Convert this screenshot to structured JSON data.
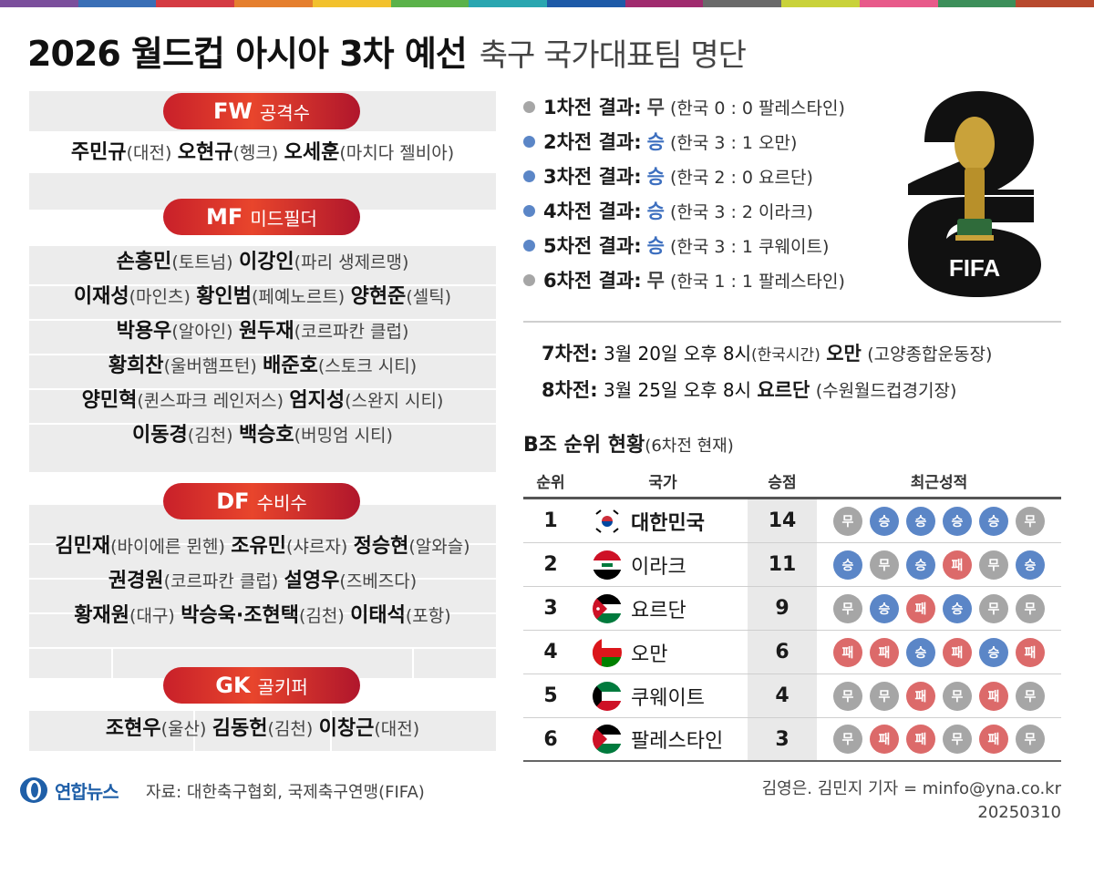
{
  "colors": {
    "win": "#5b86c7",
    "draw": "#a6a6a6",
    "loss": "#dc6a6a",
    "pill_red": "#d5302b",
    "stripe": "#ececec",
    "brand_blue": "#1f5fa8"
  },
  "top_bar_colors": [
    "#7b4f9c",
    "#3a6fb6",
    "#d53b43",
    "#e57f2e",
    "#f2c12d",
    "#5bb24a",
    "#2aa6b0",
    "#1d5aa8",
    "#a02b6e",
    "#6a6a6a",
    "#c9d23a",
    "#e85a8a",
    "#3c8f5a",
    "#b84a2e"
  ],
  "header": {
    "title": "2026 월드컵 아시아 3차 예선",
    "subtitle": "축구 국가대표팀 명단"
  },
  "squad": {
    "fw": {
      "code": "FW",
      "name": "공격수",
      "rows": [
        [
          [
            "주민규",
            "(대전)"
          ],
          [
            "오현규",
            "(헹크)"
          ],
          [
            "오세훈",
            "(마치다 젤비아)"
          ]
        ]
      ]
    },
    "mf": {
      "code": "MF",
      "name": "미드필더",
      "rows": [
        [
          [
            "손흥민",
            "(토트넘)"
          ],
          [
            "이강인",
            "(파리 생제르맹)"
          ]
        ],
        [
          [
            "이재성",
            "(마인츠)"
          ],
          [
            "황인범",
            "(페예노르트)"
          ],
          [
            "양현준",
            "(셀틱)"
          ]
        ],
        [
          [
            "박용우",
            "(알아인)"
          ],
          [
            "원두재",
            "(코르파칸 클럽)"
          ]
        ],
        [
          [
            "황희찬",
            "(울버햄프턴)"
          ],
          [
            "배준호",
            "(스토크 시티)"
          ]
        ],
        [
          [
            "양민혁",
            "(퀸스파크 레인저스)"
          ],
          [
            "엄지성",
            "(스완지 시티)"
          ]
        ],
        [
          [
            "이동경",
            "(김천)"
          ],
          [
            "백승호",
            "(버밍엄 시티)"
          ]
        ]
      ]
    },
    "df": {
      "code": "DF",
      "name": "수비수",
      "rows": [
        [
          [
            "김민재",
            "(바이에른 뮌헨)"
          ],
          [
            "조유민",
            "(샤르자)"
          ],
          [
            "정승현",
            "(알와슬)"
          ]
        ],
        [
          [
            "권경원",
            "(코르파칸 클럽)"
          ],
          [
            "설영우",
            "(즈베즈다)"
          ]
        ],
        [
          [
            "황재원",
            "(대구)"
          ],
          [
            "박승욱·조현택",
            "(김천)"
          ],
          [
            "이태석",
            "(포항)"
          ]
        ]
      ]
    },
    "gk": {
      "code": "GK",
      "name": "골키퍼",
      "rows": [
        [
          [
            "조현우",
            "(울산)"
          ],
          [
            "김동헌",
            "(김천)"
          ],
          [
            "이창근",
            "(대전)"
          ]
        ]
      ]
    }
  },
  "results": [
    {
      "label": "1차전 결과:",
      "result": "무",
      "type": "draw",
      "detail": "(한국 0 : 0 팔레스타인)"
    },
    {
      "label": "2차전 결과:",
      "result": "승",
      "type": "win",
      "detail": "(한국 3 : 1 오만)"
    },
    {
      "label": "3차전 결과:",
      "result": "승",
      "type": "win",
      "detail": "(한국 2 : 0 요르단)"
    },
    {
      "label": "4차전 결과:",
      "result": "승",
      "type": "win",
      "detail": "(한국 3 : 2 이라크)"
    },
    {
      "label": "5차전 결과:",
      "result": "승",
      "type": "win",
      "detail": "(한국 3 : 1 쿠웨이트)"
    },
    {
      "label": "6차전 결과:",
      "result": "무",
      "type": "draw",
      "detail": "(한국 1 : 1 팔레스타인)"
    }
  ],
  "logo": {
    "text": "FIFA",
    "numerals": "26"
  },
  "fixtures": [
    {
      "label": "7차전:",
      "date": "3월 20일 오후 8시",
      "tz": "(한국시간)",
      "opponent": "오만",
      "venue": "(고양종합운동장)"
    },
    {
      "label": "8차전:",
      "date": "3월 25일 오후 8시",
      "tz": "",
      "opponent": "요르단",
      "venue": "(수원월드컵경기장)"
    }
  ],
  "group": {
    "title": "B조 순위 현황",
    "note": "(6차전 현재)",
    "headers": {
      "rank": "순위",
      "team": "국가",
      "points": "승점",
      "form": "최근성적"
    },
    "rows": [
      {
        "rank": "1",
        "team": "대한민국",
        "flag": "korea",
        "points": "14",
        "form": [
          "무",
          "승",
          "승",
          "승",
          "승",
          "무"
        ]
      },
      {
        "rank": "2",
        "team": "이라크",
        "flag": "iraq",
        "points": "11",
        "form": [
          "승",
          "무",
          "승",
          "패",
          "무",
          "승"
        ]
      },
      {
        "rank": "3",
        "team": "요르단",
        "flag": "jordan",
        "points": "9",
        "form": [
          "무",
          "승",
          "패",
          "승",
          "무",
          "무"
        ]
      },
      {
        "rank": "4",
        "team": "오만",
        "flag": "oman",
        "points": "6",
        "form": [
          "패",
          "패",
          "승",
          "패",
          "승",
          "패"
        ]
      },
      {
        "rank": "5",
        "team": "쿠웨이트",
        "flag": "kuwait",
        "points": "4",
        "form": [
          "무",
          "무",
          "패",
          "무",
          "패",
          "무"
        ]
      },
      {
        "rank": "6",
        "team": "팔레스타인",
        "flag": "palestine",
        "points": "3",
        "form": [
          "무",
          "패",
          "패",
          "무",
          "패",
          "무"
        ]
      }
    ]
  },
  "footer": {
    "brand": "연합뉴스",
    "source": "자료: 대한축구협회, 국제축구연맹(FIFA)",
    "credit": "김영은. 김민지 기자 = minfo@yna.co.kr",
    "date": "20250310"
  }
}
